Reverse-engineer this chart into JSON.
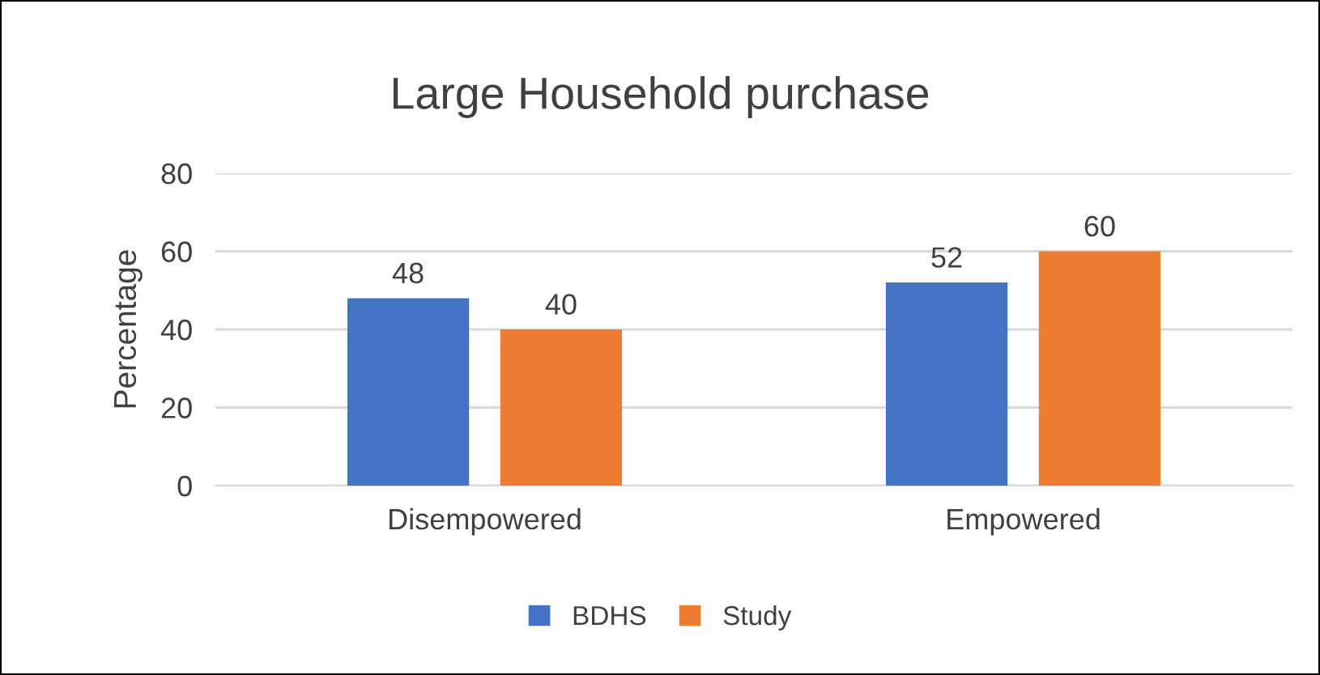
{
  "chart_data": {
    "type": "bar",
    "title": "Large Household purchase",
    "ylabel": "Percentage",
    "categories": [
      "Disempowered",
      "Empowered"
    ],
    "series": [
      {
        "name": "BDHS",
        "color": "#4472c4",
        "values": [
          48,
          52
        ]
      },
      {
        "name": "Study",
        "color": "#ed7d31",
        "values": [
          40,
          60
        ]
      }
    ],
    "ylim": [
      0,
      80
    ],
    "yticks": [
      0,
      20,
      40,
      60,
      80
    ],
    "grid": "y",
    "legend": "bottom",
    "data_labels": true
  }
}
